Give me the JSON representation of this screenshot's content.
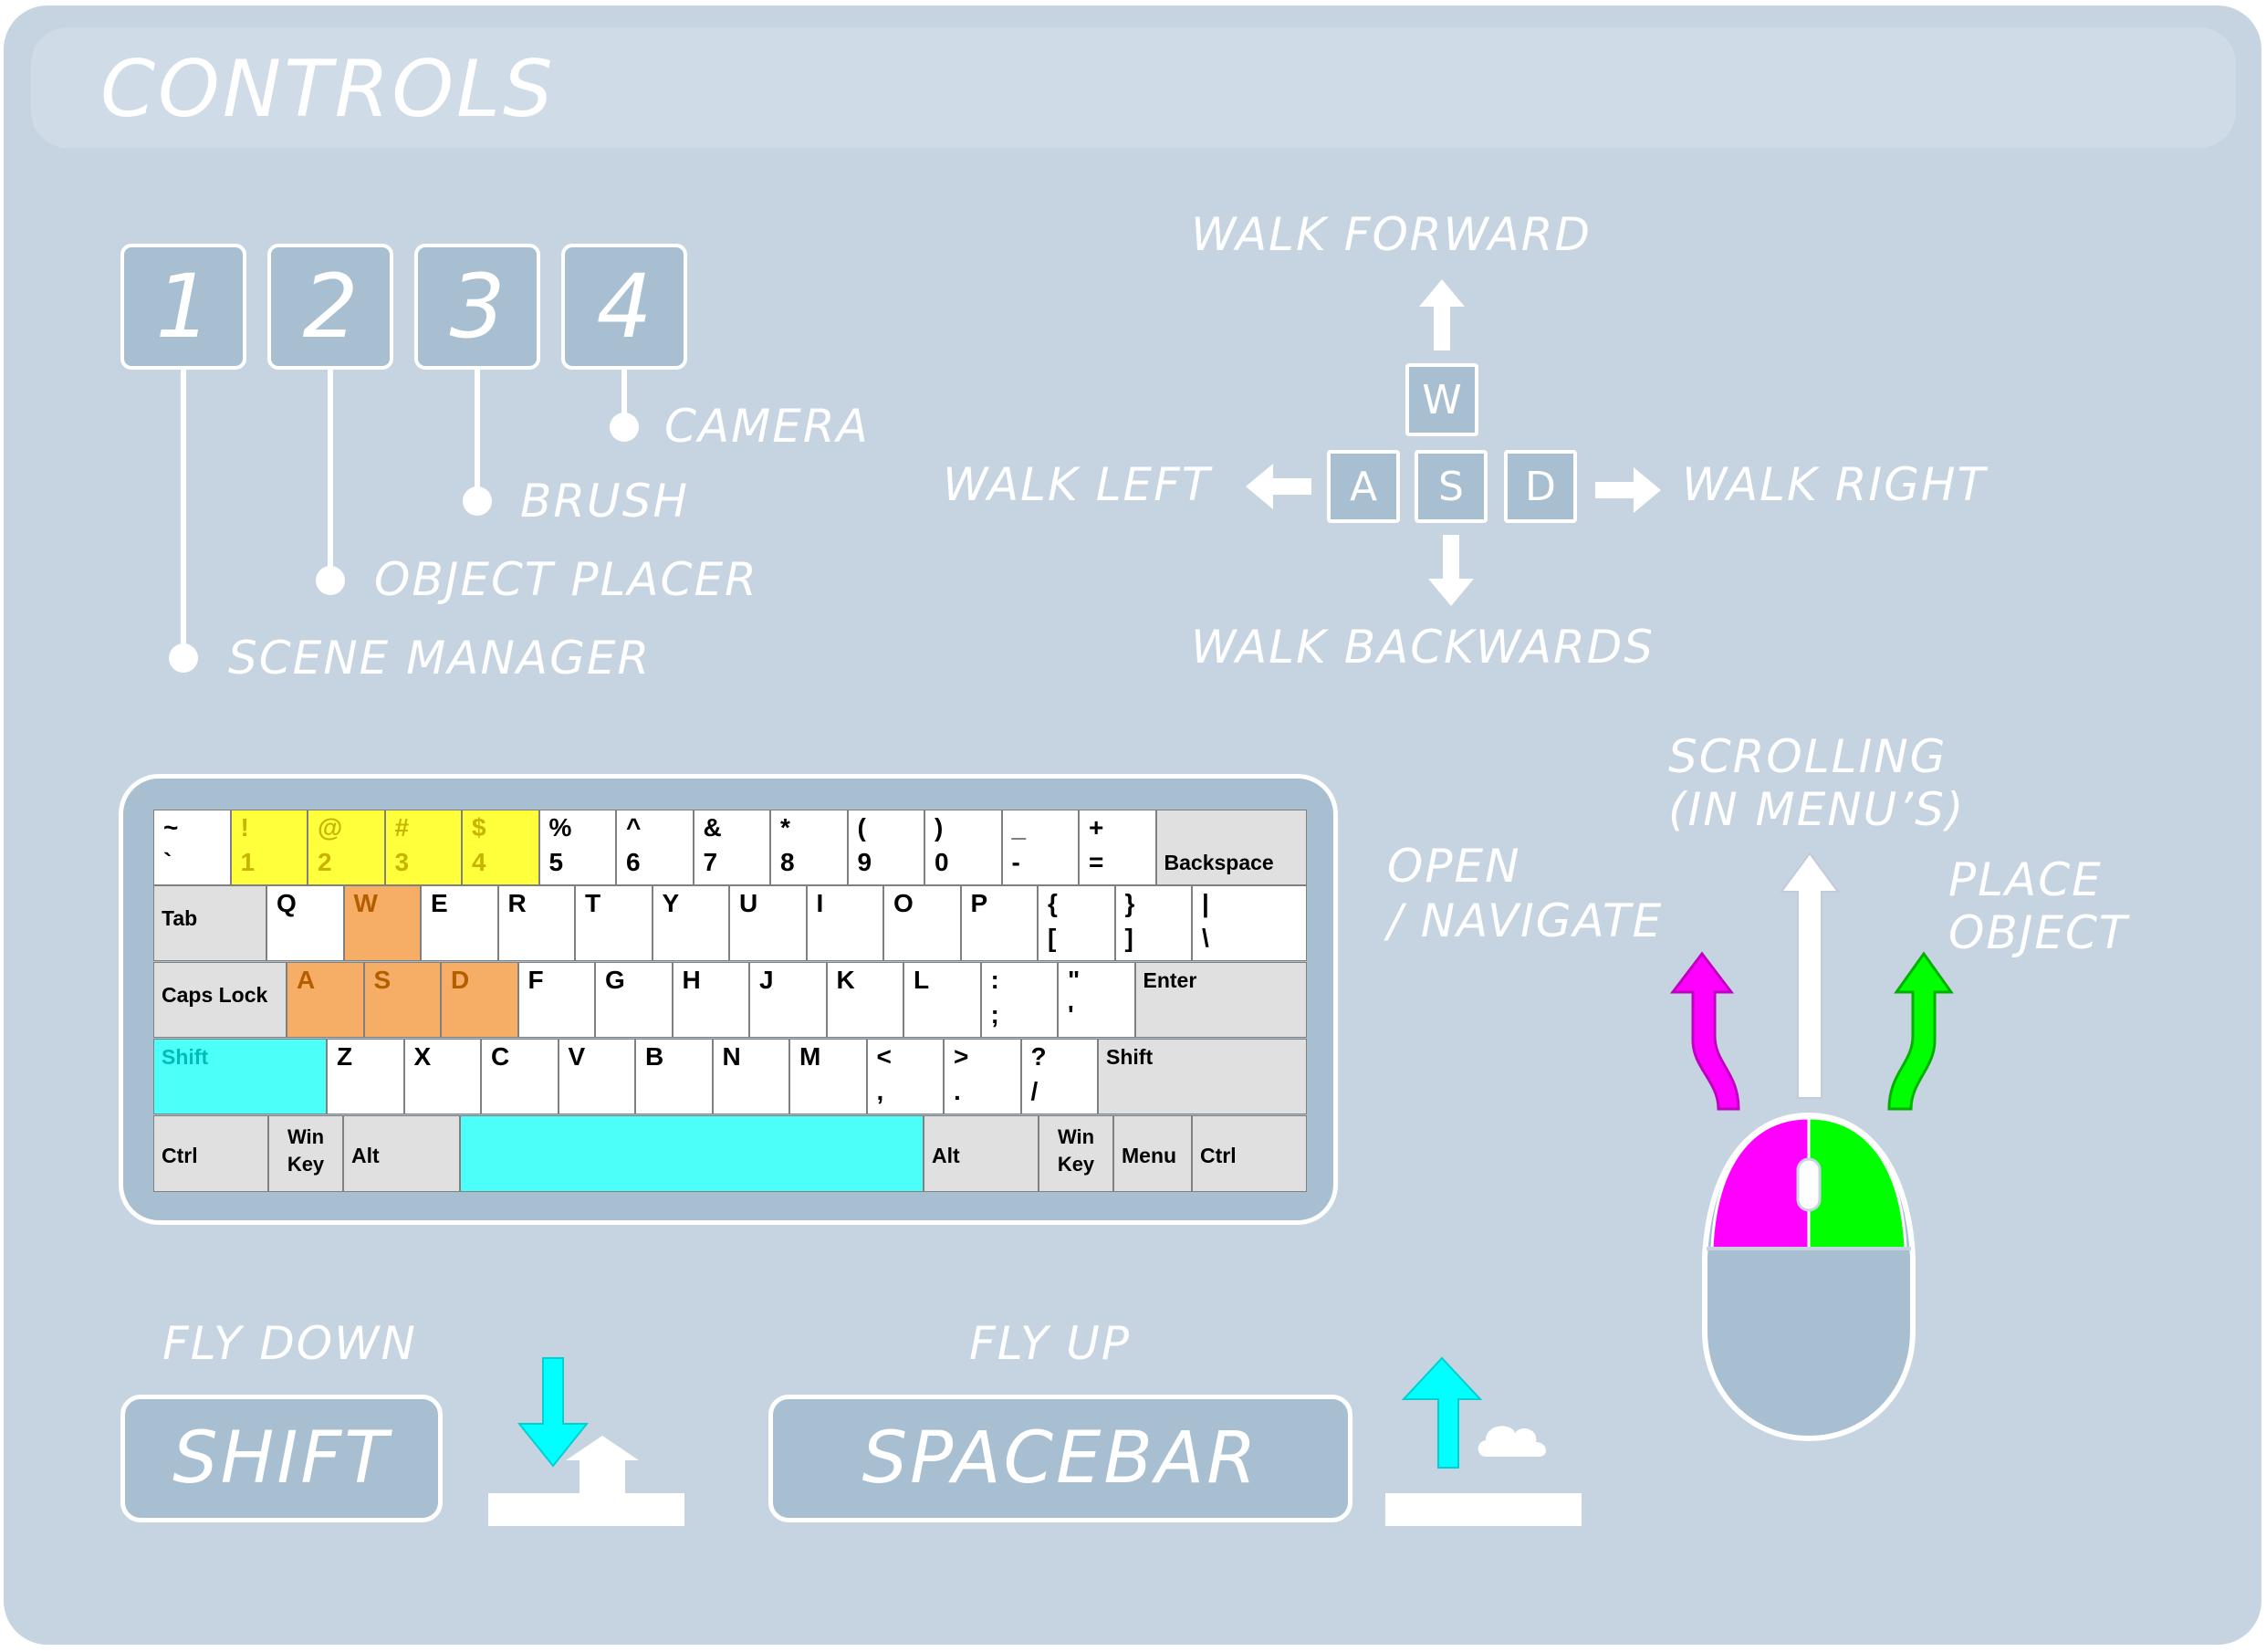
{
  "title": "CONTROLS",
  "number_keys": [
    {
      "key": "1",
      "label": "SCENE MANAGER"
    },
    {
      "key": "2",
      "label": "OBJECT PLACER"
    },
    {
      "key": "3",
      "label": "BRUSH"
    },
    {
      "key": "4",
      "label": "CAMERA"
    }
  ],
  "movement": {
    "forward": "WALK FORWARD",
    "left": "WALK LEFT",
    "right": "WALK RIGHT",
    "backwards": "WALK BACKWARDS",
    "keys": {
      "w": "W",
      "a": "A",
      "s": "S",
      "d": "D"
    }
  },
  "keyboard": {
    "row1": [
      {
        "top": "~",
        "bottom": "`"
      },
      {
        "top": "!",
        "bottom": "1"
      },
      {
        "top": "@",
        "bottom": "2"
      },
      {
        "top": "#",
        "bottom": "3"
      },
      {
        "top": "$",
        "bottom": "4"
      },
      {
        "top": "%",
        "bottom": "5"
      },
      {
        "top": "^",
        "bottom": "6"
      },
      {
        "top": "&",
        "bottom": "7"
      },
      {
        "top": "*",
        "bottom": "8"
      },
      {
        "top": "(",
        "bottom": "9"
      },
      {
        "top": ")",
        "bottom": "0"
      },
      {
        "top": "_",
        "bottom": "-"
      },
      {
        "top": "+",
        "bottom": "="
      }
    ],
    "backspace": "Backspace",
    "tab": "Tab",
    "row2": [
      "Q",
      "W",
      "E",
      "R",
      "T",
      "Y",
      "U",
      "I",
      "O",
      "P"
    ],
    "row2_sym": [
      {
        "top": "{",
        "bottom": "["
      },
      {
        "top": "}",
        "bottom": "]"
      },
      {
        "top": "|",
        "bottom": "\\"
      }
    ],
    "caps": "Caps Lock",
    "row3": [
      "A",
      "S",
      "D",
      "F",
      "G",
      "H",
      "J",
      "K",
      "L"
    ],
    "row3_sym": [
      {
        "top": ":",
        "bottom": ";"
      },
      {
        "top": "\"",
        "bottom": "'"
      }
    ],
    "enter": "Enter",
    "shift": "Shift",
    "row4": [
      "Z",
      "X",
      "C",
      "V",
      "B",
      "N",
      "M"
    ],
    "row4_sym": [
      {
        "top": "<",
        "bottom": ","
      },
      {
        "top": ">",
        "bottom": "."
      },
      {
        "top": "?",
        "bottom": "/"
      }
    ],
    "ctrl": "Ctrl",
    "win_top": "Win",
    "win_bottom": "Key",
    "alt": "Alt",
    "menu": "Menu"
  },
  "mouse": {
    "left": "OPEN\n/ NAVIGATE",
    "left_1": "OPEN",
    "left_2": "/ NAVIGATE",
    "scroll_1": "SCROLLING",
    "scroll_2": "(IN MENU’S)",
    "right_1": "PLACE",
    "right_2": "OBJECT",
    "colors": {
      "left": "#ff00ff",
      "right": "#00ff00",
      "body": "#a8bfd2"
    }
  },
  "fly": {
    "down_label": "FLY DOWN",
    "down_key": "SHIFT",
    "up_label": "FLY UP",
    "up_key": "SPACEBAR",
    "arrow_color": "#00ffff"
  },
  "colors": {
    "background": "#c5d4e0",
    "key_fill": "#a8bfd2",
    "highlight_numbers": "#ffff3c",
    "highlight_wasd": "#f6ad66",
    "highlight_fly": "#4dfff9"
  }
}
